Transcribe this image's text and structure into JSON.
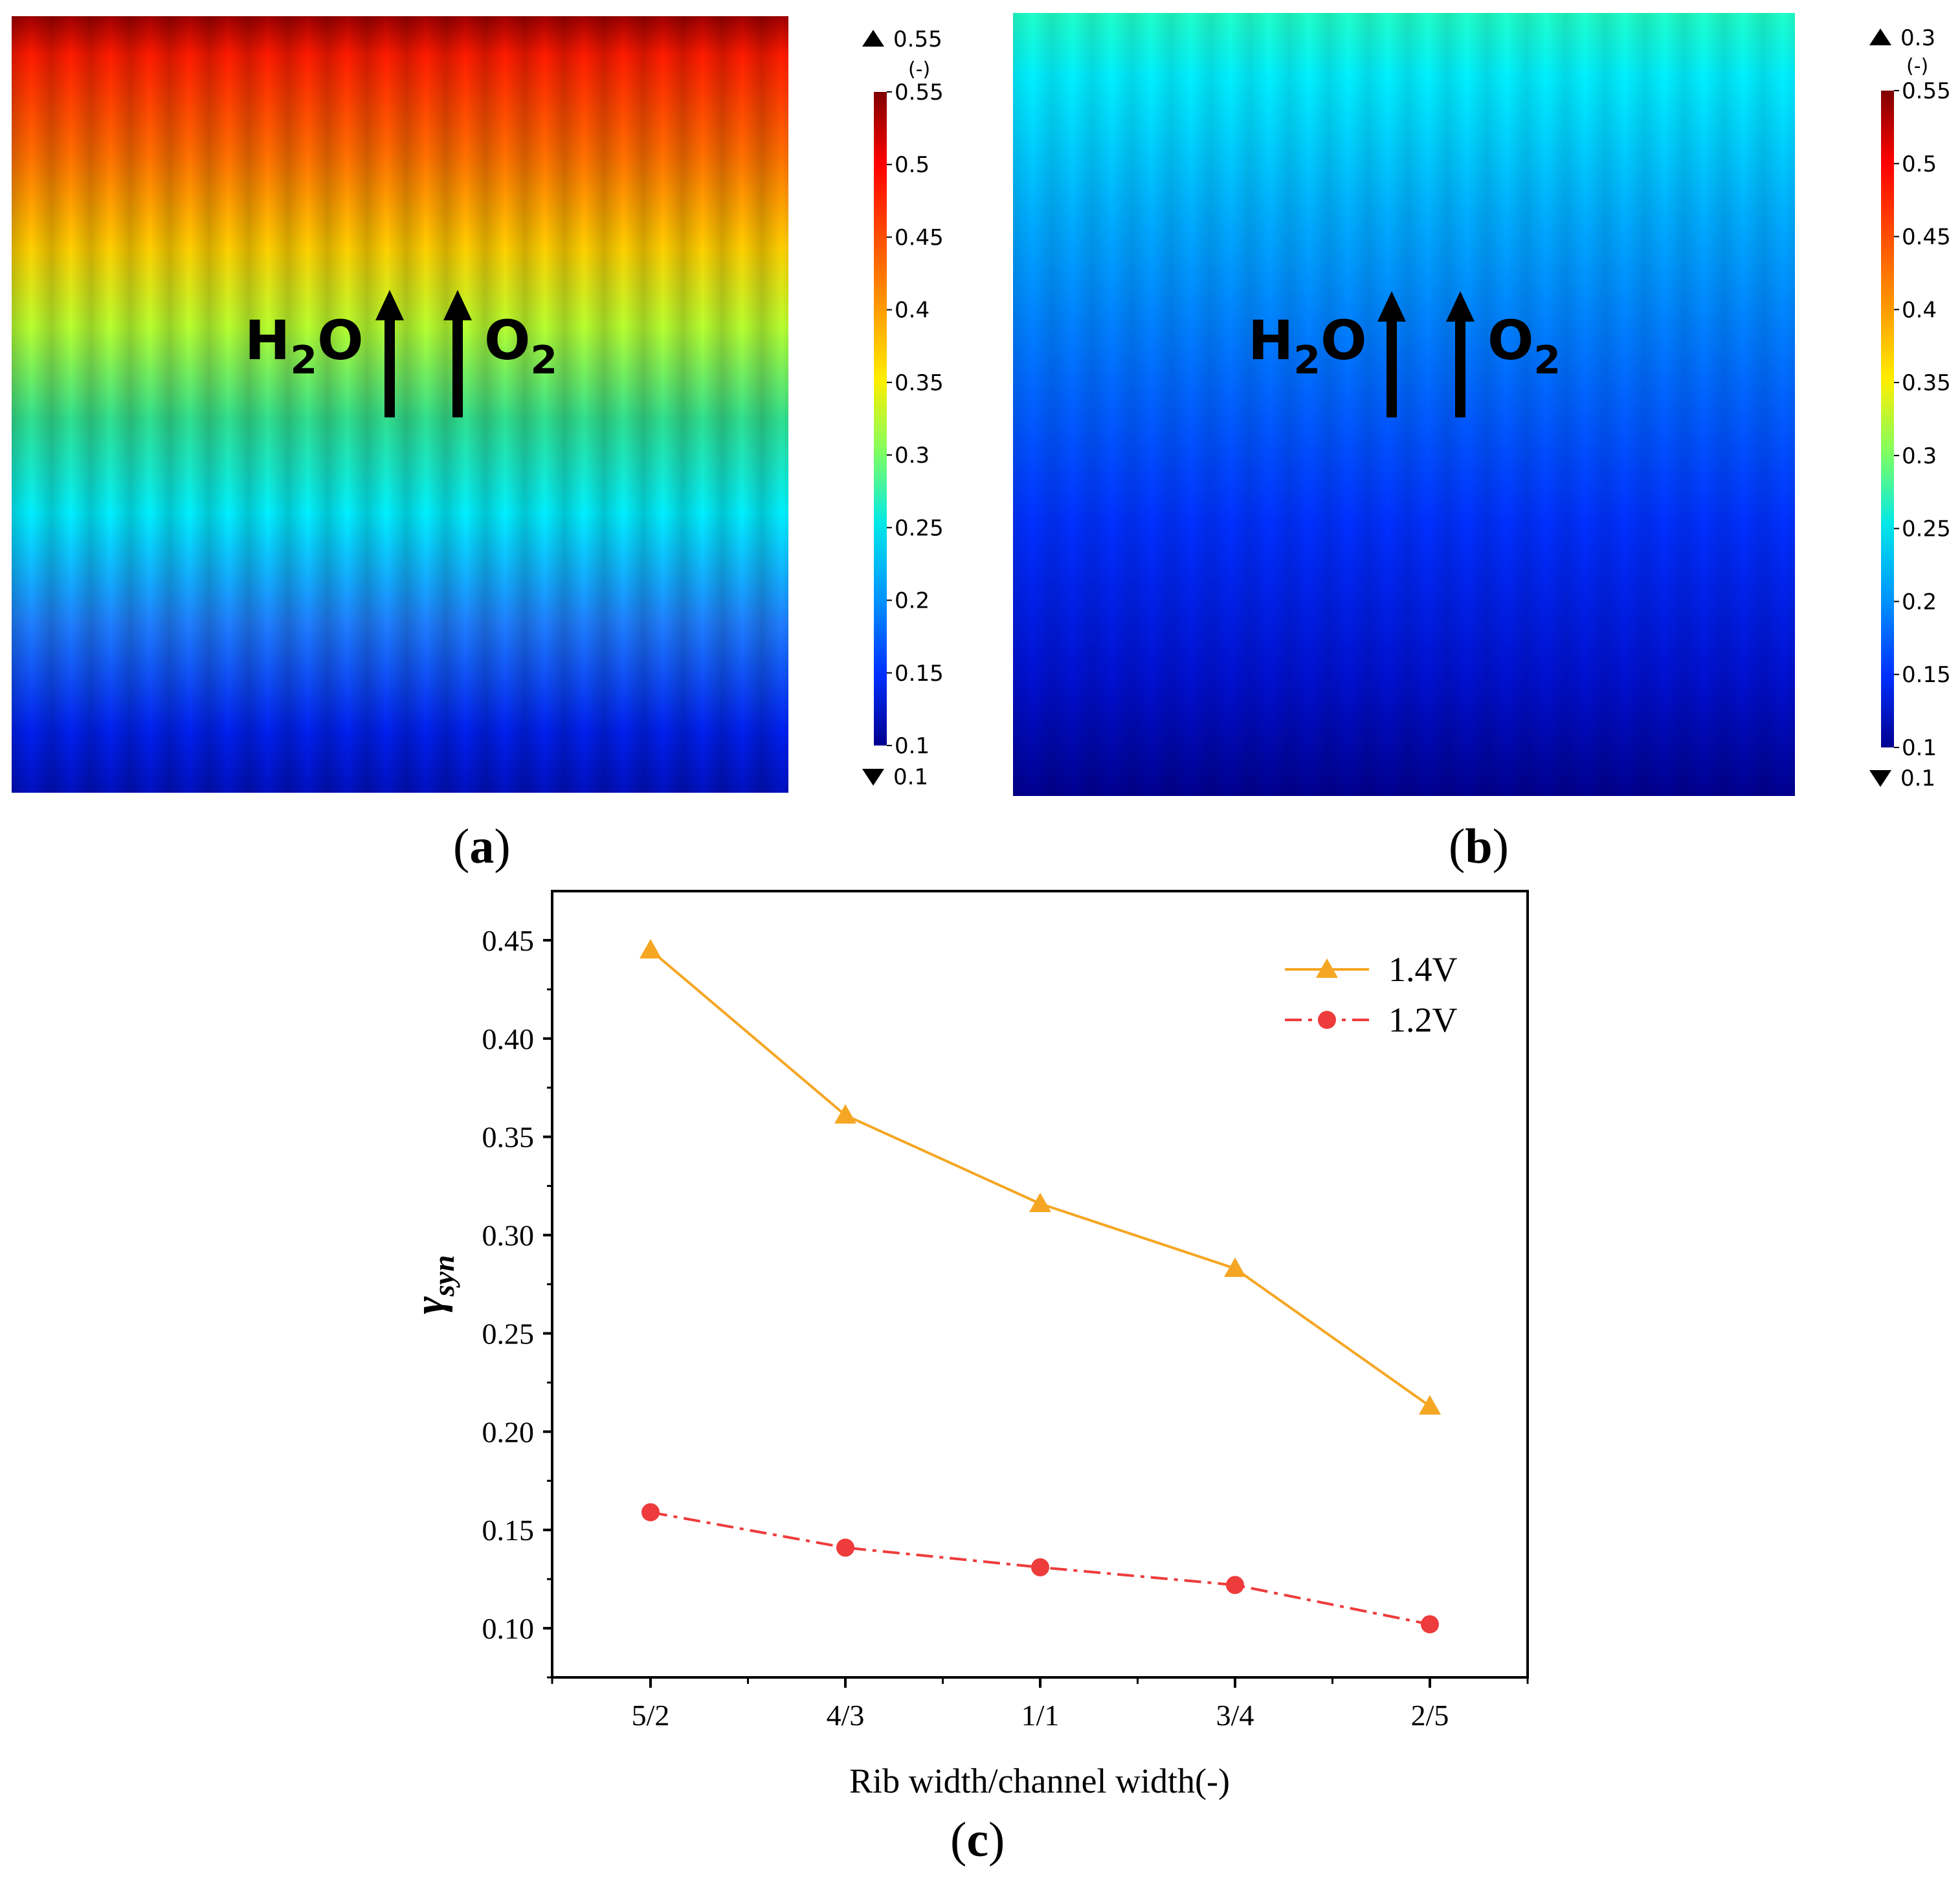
{
  "panels": {
    "a": {
      "caption_open": "(",
      "caption_letter": "a",
      "caption_close": ")",
      "flow_labels": [
        "H",
        "2",
        "O",
        "O",
        "2"
      ],
      "colorbar": {
        "unit": "(-)",
        "max_marker": "0.55",
        "min_marker": "0.1",
        "min": 0.1,
        "max": 0.55,
        "ticks": [
          "0.55",
          "0.5",
          "0.45",
          "0.4",
          "0.35",
          "0.3",
          "0.25",
          "0.2",
          "0.15",
          "0.1"
        ]
      }
    },
    "b": {
      "caption_open": "(",
      "caption_letter": "b",
      "caption_close": ")",
      "flow_labels": [
        "H",
        "2",
        "O",
        "O",
        "2"
      ],
      "colorbar": {
        "unit": "(-)",
        "max_marker": "0.3",
        "min_marker": "0.1",
        "min": 0.1,
        "max": 0.55,
        "ticks": [
          "0.55",
          "0.5",
          "0.45",
          "0.4",
          "0.35",
          "0.3",
          "0.25",
          "0.2",
          "0.15",
          "0.1"
        ]
      }
    },
    "c": {
      "caption_open": "(",
      "caption_letter": "c",
      "caption_close": ")"
    }
  },
  "colors": {
    "series_1_4V": "#f5a623",
    "series_1_2V": "#ee3b3b"
  },
  "chart_data": {
    "type": "line",
    "categories": [
      "5/2",
      "4/3",
      "1/1",
      "3/4",
      "2/5"
    ],
    "xlabel": "Rib width/channel width(-)",
    "ylabel_main": "γ",
    "ylabel_sub": "syn",
    "ylim": [
      0.075,
      0.475
    ],
    "yticks": [
      "0.10",
      "0.15",
      "0.20",
      "0.25",
      "0.30",
      "0.35",
      "0.40",
      "0.45"
    ],
    "legend_position": "top-right",
    "grid": false,
    "series": [
      {
        "name": "1.4V",
        "marker": "triangle",
        "line": "solid",
        "values": [
          0.445,
          0.361,
          0.316,
          0.283,
          0.213
        ]
      },
      {
        "name": "1.2V",
        "marker": "circle",
        "line": "dash-dot",
        "values": [
          0.159,
          0.141,
          0.131,
          0.122,
          0.102
        ]
      }
    ]
  }
}
